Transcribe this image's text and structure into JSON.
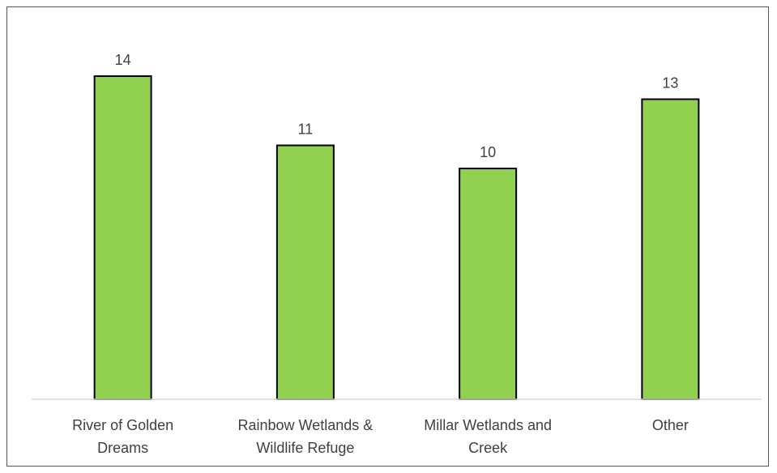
{
  "chart_data": {
    "type": "bar",
    "categories": [
      [
        "River of Golden",
        "Dreams"
      ],
      [
        "Rainbow Wetlands &",
        "Wildlife Refuge"
      ],
      [
        "Millar Wetlands and",
        "Creek"
      ],
      [
        "Other"
      ]
    ],
    "values": [
      14,
      11,
      10,
      13
    ],
    "ylim": [
      0,
      14.0
    ],
    "bar_color": "#92d050",
    "bar_edge_color": "#000000",
    "data_labels": true,
    "grid": false,
    "legend": "none"
  }
}
